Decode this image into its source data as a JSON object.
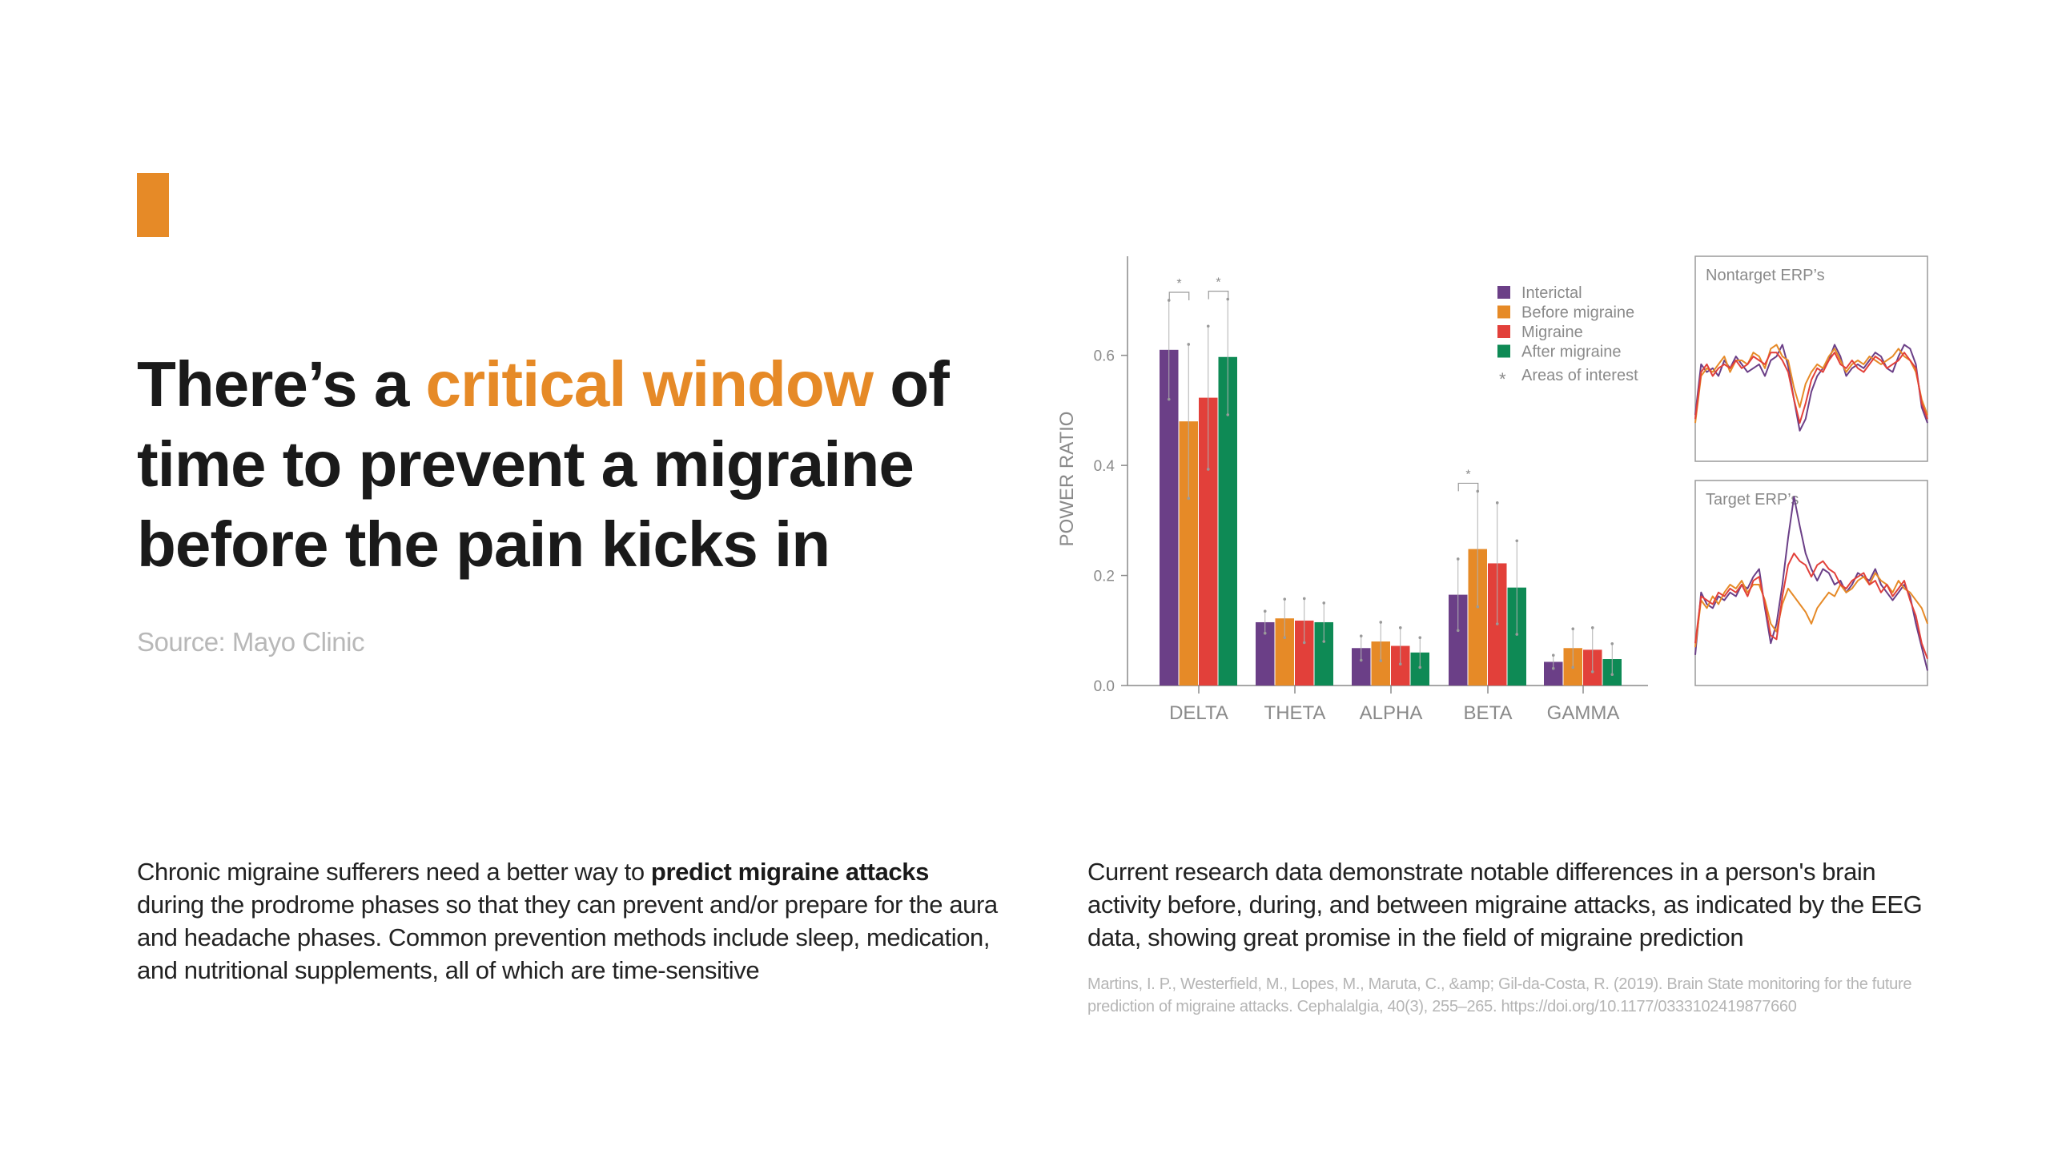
{
  "colors": {
    "accent": "#e68a27",
    "interictal": "#6b3f87",
    "before_migraine": "#e68a27",
    "migraine": "#e2403a",
    "after_migraine": "#0e8a55",
    "axis": "#8a8a8a"
  },
  "headline": {
    "part1": "There’s a ",
    "highlight": "critical window",
    "part2": " of time to prevent a migraine before the pain kicks in"
  },
  "source": "Source: Mayo Clinic",
  "left_paragraph": {
    "before": "Chronic migraine sufferers need a better way to ",
    "bold": "predict migraine attacks",
    "after": " during the prodrome phases so that they can prevent and/or prepare for the aura and headache phases. Common prevention methods include sleep, medication, and nutritional supplements, all of which are time-sensitive"
  },
  "right_paragraph": "Current research data demonstrate notable differences in a person's brain activity before, during, and between migraine attacks, as indicated by the EEG data, showing great promise in the field of migraine prediction",
  "citation": "Martins, I. P., Westerfield, M., Lopes, M., Maruta, C., &amp; Gil-da-Costa, R. (2019). Brain State monitoring for the future prediction of migraine attacks. Cephalalgia, 40(3), 255–265. https://doi.org/10.1177/0333102419877660",
  "chart_data": [
    {
      "type": "bar",
      "ylabel": "POWER RATIO",
      "xlabel": "",
      "ylim": [
        0,
        0.78
      ],
      "yticks": [
        0.0,
        0.2,
        0.4,
        0.6
      ],
      "ytick_labels": [
        "0.0",
        "0.2",
        "0.4",
        "0.6"
      ],
      "categories": [
        "DELTA",
        "THETA",
        "ALPHA",
        "BETA",
        "GAMMA"
      ],
      "series": [
        {
          "name": "Interictal",
          "values": [
            0.61,
            0.115,
            0.068,
            0.165,
            0.043
          ],
          "err": [
            0.09,
            0.02,
            0.022,
            0.065,
            0.012
          ]
        },
        {
          "name": "Before migraine",
          "values": [
            0.48,
            0.122,
            0.08,
            0.248,
            0.068
          ],
          "err": [
            0.14,
            0.035,
            0.035,
            0.105,
            0.035
          ]
        },
        {
          "name": "Migraine",
          "values": [
            0.523,
            0.118,
            0.072,
            0.222,
            0.065
          ],
          "err": [
            0.13,
            0.04,
            0.033,
            0.11,
            0.04
          ]
        },
        {
          "name": "After migraine",
          "values": [
            0.597,
            0.115,
            0.06,
            0.178,
            0.048
          ],
          "err": [
            0.105,
            0.035,
            0.027,
            0.085,
            0.028
          ]
        }
      ],
      "legend": [
        "Interictal",
        "Before migraine",
        "Migraine",
        "After migraine"
      ],
      "legend_position": "top-right",
      "annotation_note": "Areas of interest",
      "significance_marks": [
        {
          "category": "DELTA",
          "pair": [
            "Interictal",
            "Before migraine"
          ],
          "symbol": "*"
        },
        {
          "category": "DELTA",
          "pair": [
            "Migraine",
            "After migraine"
          ],
          "symbol": "*"
        },
        {
          "category": "BETA",
          "pair": [
            "Interictal",
            "Before migraine"
          ],
          "symbol": "*"
        }
      ],
      "grid": false
    },
    {
      "type": "line",
      "title": "Nontarget ERP’s",
      "ylim": [
        0,
        1
      ],
      "series": [
        {
          "name": "Interictal",
          "values": [
            0.22,
            0.48,
            0.44,
            0.46,
            0.42,
            0.5,
            0.46,
            0.52,
            0.48,
            0.44,
            0.46,
            0.48,
            0.42,
            0.5,
            0.52,
            0.58,
            0.47,
            0.3,
            0.14,
            0.2,
            0.34,
            0.42,
            0.46,
            0.5,
            0.58,
            0.52,
            0.42,
            0.46,
            0.48,
            0.46,
            0.5,
            0.54,
            0.52,
            0.46,
            0.44,
            0.52,
            0.58,
            0.56,
            0.48,
            0.26,
            0.18
          ]
        },
        {
          "name": "Before migraine",
          "values": [
            0.18,
            0.42,
            0.46,
            0.44,
            0.48,
            0.52,
            0.44,
            0.5,
            0.5,
            0.48,
            0.54,
            0.52,
            0.46,
            0.56,
            0.58,
            0.52,
            0.5,
            0.36,
            0.26,
            0.38,
            0.44,
            0.48,
            0.46,
            0.52,
            0.56,
            0.5,
            0.44,
            0.48,
            0.5,
            0.48,
            0.52,
            0.5,
            0.48,
            0.5,
            0.52,
            0.56,
            0.52,
            0.5,
            0.44,
            0.3,
            0.22
          ]
        },
        {
          "name": "Migraine",
          "values": [
            0.2,
            0.44,
            0.48,
            0.42,
            0.46,
            0.48,
            0.46,
            0.5,
            0.46,
            0.48,
            0.52,
            0.5,
            0.48,
            0.54,
            0.54,
            0.5,
            0.44,
            0.3,
            0.18,
            0.28,
            0.4,
            0.46,
            0.44,
            0.5,
            0.54,
            0.48,
            0.46,
            0.5,
            0.46,
            0.44,
            0.48,
            0.52,
            0.5,
            0.46,
            0.48,
            0.5,
            0.54,
            0.5,
            0.46,
            0.28,
            0.2
          ]
        }
      ]
    },
    {
      "type": "line",
      "title": "Target ERP’s",
      "ylim": [
        0,
        1
      ],
      "series": [
        {
          "name": "Interictal",
          "values": [
            0.14,
            0.46,
            0.4,
            0.38,
            0.44,
            0.42,
            0.46,
            0.44,
            0.5,
            0.48,
            0.54,
            0.58,
            0.38,
            0.2,
            0.3,
            0.5,
            0.74,
            0.95,
            0.8,
            0.66,
            0.58,
            0.52,
            0.58,
            0.56,
            0.5,
            0.52,
            0.46,
            0.5,
            0.56,
            0.54,
            0.52,
            0.58,
            0.5,
            0.46,
            0.42,
            0.46,
            0.5,
            0.44,
            0.3,
            0.18,
            0.06
          ]
        },
        {
          "name": "Before migraine",
          "values": [
            0.18,
            0.42,
            0.38,
            0.44,
            0.4,
            0.46,
            0.5,
            0.48,
            0.52,
            0.46,
            0.5,
            0.5,
            0.42,
            0.3,
            0.26,
            0.4,
            0.48,
            0.44,
            0.4,
            0.36,
            0.3,
            0.38,
            0.42,
            0.46,
            0.44,
            0.5,
            0.46,
            0.48,
            0.52,
            0.54,
            0.5,
            0.56,
            0.52,
            0.5,
            0.46,
            0.52,
            0.48,
            0.46,
            0.42,
            0.38,
            0.3
          ]
        },
        {
          "name": "Migraine",
          "values": [
            0.2,
            0.44,
            0.42,
            0.4,
            0.46,
            0.44,
            0.48,
            0.46,
            0.5,
            0.44,
            0.52,
            0.54,
            0.4,
            0.24,
            0.22,
            0.44,
            0.6,
            0.66,
            0.62,
            0.6,
            0.54,
            0.6,
            0.62,
            0.58,
            0.56,
            0.5,
            0.48,
            0.52,
            0.54,
            0.56,
            0.5,
            0.52,
            0.46,
            0.5,
            0.44,
            0.48,
            0.52,
            0.42,
            0.34,
            0.2,
            0.12
          ]
        }
      ]
    }
  ]
}
